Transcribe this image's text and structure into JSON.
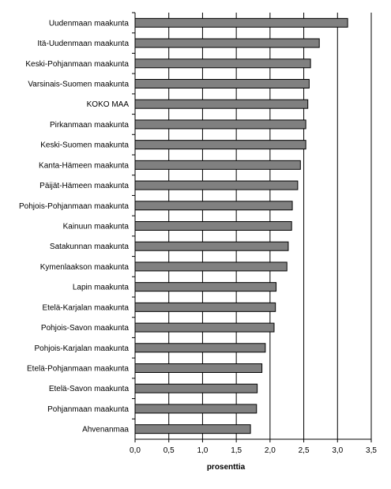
{
  "chart_data": {
    "type": "bar",
    "orientation": "horizontal",
    "categories": [
      "Uudenmaan maakunta",
      "Itä-Uudenmaan maakunta",
      "Keski-Pohjanmaan maakunta",
      "Varsinais-Suomen maakunta",
      "KOKO MAA",
      "Pirkanmaan maakunta",
      "Keski-Suomen maakunta",
      "Kanta-Hämeen maakunta",
      "Päijät-Hämeen maakunta",
      "Pohjois-Pohjanmaan maakunta",
      "Kainuun maakunta",
      "Satakunnan maakunta",
      "Kymenlaakson maakunta",
      "Lapin maakunta",
      "Etelä-Karjalan maakunta",
      "Pohjois-Savon maakunta",
      "Pohjois-Karjalan maakunta",
      "Etelä-Pohjanmaan maakunta",
      "Etelä-Savon maakunta",
      "Pohjanmaan maakunta",
      "Ahvenanmaa"
    ],
    "values": [
      3.15,
      2.73,
      2.6,
      2.58,
      2.56,
      2.53,
      2.53,
      2.45,
      2.41,
      2.33,
      2.32,
      2.27,
      2.25,
      2.09,
      2.08,
      2.06,
      1.93,
      1.88,
      1.81,
      1.8,
      1.71
    ],
    "xlabel": "prosenttia",
    "ylabel": "",
    "xlim": [
      0,
      3.5
    ],
    "ticks": [
      "0,0",
      "0,5",
      "1,0",
      "1,5",
      "2,0",
      "2,5",
      "3,0",
      "3,5"
    ],
    "grid": "vertical",
    "bar_color": "#808080",
    "bar_edge_color": "#000000"
  }
}
